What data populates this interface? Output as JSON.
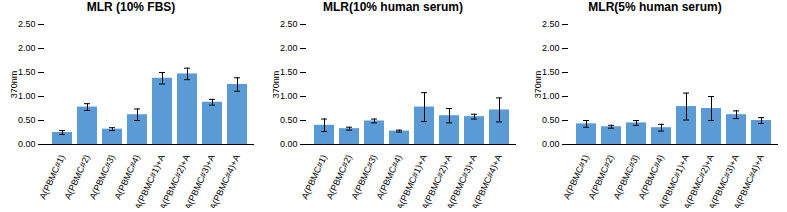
{
  "chart_data": [
    {
      "type": "bar",
      "title": "MLR (10% FBS)",
      "categories": [
        "A(PBMC#1)",
        "A(PBMC#2)",
        "A(PBMC#3)",
        "A(PBMC#4)",
        "A(PBMC#1)+A",
        "A(PBMC#2)+A",
        "A(PBMC#3)+A",
        "A(PBMC#4)+A"
      ],
      "values": [
        0.25,
        0.78,
        0.32,
        0.62,
        1.38,
        1.47,
        0.88,
        1.25
      ],
      "errors": [
        0.04,
        0.07,
        0.03,
        0.12,
        0.12,
        0.12,
        0.06,
        0.14
      ],
      "color": "#5B9BD5",
      "ylabel": "370nm",
      "ylim": [
        0.0,
        2.5
      ],
      "yticks": [
        {
          "value": 0,
          "label": "0.00"
        },
        {
          "value": 0.5,
          "label": "0.50"
        },
        {
          "value": 1,
          "label": "1.00"
        },
        {
          "value": 1.5,
          "label": "1.50"
        },
        {
          "value": 2,
          "label": "2.00"
        },
        {
          "value": 2.5,
          "label": "2.50"
        }
      ]
    },
    {
      "type": "bar",
      "title": "MLR(10% human serum)",
      "categories": [
        "A(PBMC#1)",
        "A(PBMC#2)",
        "A(PBMC#3)",
        "A(PBMC#4)",
        "A(PBMC#1)+A",
        "A(PBMC#2)+A",
        "A(PBMC#3)+A",
        "A(PBMC#4)+A"
      ],
      "values": [
        0.4,
        0.33,
        0.49,
        0.28,
        0.78,
        0.6,
        0.58,
        0.72
      ],
      "errors": [
        0.13,
        0.03,
        0.04,
        0.02,
        0.3,
        0.15,
        0.05,
        0.25
      ],
      "color": "#5B9BD5",
      "ylabel": "370nm",
      "ylim": [
        0.0,
        2.5
      ],
      "yticks": [
        {
          "value": 0,
          "label": "0.00"
        },
        {
          "value": 0.5,
          "label": "0.50"
        },
        {
          "value": 1,
          "label": "1.00"
        },
        {
          "value": 1.5,
          "label": "1.50"
        },
        {
          "value": 2,
          "label": "2.00"
        },
        {
          "value": 2.5,
          "label": "2.50"
        }
      ]
    },
    {
      "type": "bar",
      "title": "MLR(5% human serum)",
      "categories": [
        "A(PBMC#1)",
        "A(PBMC#2)",
        "A(PBMC#3)",
        "A(PBMC#4)",
        "A(PBMC#1)+A",
        "A(PBMC#2)+A",
        "A(PBMC#3)+A",
        "A(PBMC#4)+A"
      ],
      "values": [
        0.43,
        0.37,
        0.45,
        0.35,
        0.79,
        0.75,
        0.62,
        0.5
      ],
      "errors": [
        0.07,
        0.03,
        0.05,
        0.07,
        0.28,
        0.25,
        0.08,
        0.06
      ],
      "color": "#5B9BD5",
      "ylabel": "370nm",
      "ylim": [
        0.0,
        2.5
      ],
      "yticks": [
        {
          "value": 0,
          "label": "0.00"
        },
        {
          "value": 0.5,
          "label": "0.50"
        },
        {
          "value": 1,
          "label": "1.00"
        },
        {
          "value": 1.5,
          "label": "1.50"
        },
        {
          "value": 2,
          "label": "2.00"
        },
        {
          "value": 2.5,
          "label": "2.50"
        }
      ]
    }
  ]
}
